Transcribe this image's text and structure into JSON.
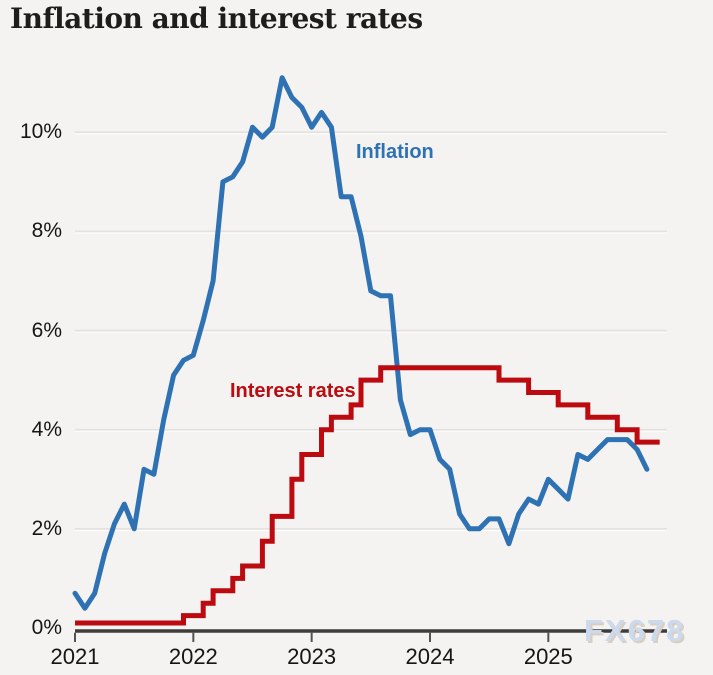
{
  "page": {
    "title": "Inflation and interest rates",
    "watermark": "FX678"
  },
  "colors": {
    "background": "#f4f3f1",
    "inflation_blue": "#2e72b3",
    "rates_red": "#bb0a10",
    "gridline": "#e3e2e0",
    "gridline_emboss": "#fbfbfa",
    "axis": "#3f3d3a",
    "tick_mark": "#55534f",
    "tick_text": "#151514",
    "watermark_blue": "#ccdaee"
  },
  "chart_data": {
    "type": "line",
    "title": "Inflation and interest rates",
    "x_axis": {
      "tick_labels": [
        "2021",
        "2022",
        "2023",
        "2024",
        "2025"
      ],
      "unit": "year",
      "resolution": "monthly"
    },
    "y_axis": {
      "tick_labels": [
        "0%",
        "2%",
        "4%",
        "6%",
        "8%",
        "10%"
      ],
      "ticks": [
        0,
        2,
        4,
        6,
        8,
        10
      ],
      "ylim": [
        0,
        11.3
      ],
      "unit": "%"
    },
    "grid": "horizontal-only",
    "legend_position": "inline-labels-on-chart",
    "series": [
      {
        "name": "Inflation",
        "label": "Inflation",
        "color": "#2e72b3",
        "style": "line",
        "x_start_month": "2021-01",
        "values_pct": [
          0.7,
          0.4,
          0.7,
          1.5,
          2.1,
          2.5,
          2.0,
          3.2,
          3.1,
          4.2,
          5.1,
          5.4,
          5.5,
          6.2,
          7.0,
          9.0,
          9.1,
          9.4,
          10.1,
          9.9,
          10.1,
          11.1,
          10.7,
          10.5,
          10.1,
          10.4,
          10.1,
          8.7,
          8.7,
          7.9,
          6.8,
          6.7,
          6.7,
          4.6,
          3.9,
          4.0,
          4.0,
          3.4,
          3.2,
          2.3,
          2.0,
          2.0,
          2.2,
          2.2,
          1.7,
          2.3,
          2.6,
          2.5,
          3.0,
          2.8,
          2.6,
          3.5,
          3.4,
          3.6,
          3.8,
          3.8,
          3.8,
          3.6,
          3.2
        ]
      },
      {
        "name": "Interest rates",
        "label": "Interest rates",
        "color": "#bb0a10",
        "style": "step",
        "x_start_month": "2021-01",
        "breakpoints_month_value": [
          [
            0,
            0.1
          ],
          [
            11,
            0.25
          ],
          [
            13,
            0.5
          ],
          [
            14,
            0.75
          ],
          [
            16,
            1.0
          ],
          [
            17,
            1.25
          ],
          [
            19,
            1.75
          ],
          [
            20,
            2.25
          ],
          [
            22,
            3.0
          ],
          [
            23,
            3.5
          ],
          [
            25,
            4.0
          ],
          [
            26,
            4.25
          ],
          [
            28,
            4.5
          ],
          [
            29,
            5.0
          ],
          [
            31,
            5.25
          ],
          [
            43,
            5.0
          ],
          [
            46,
            4.75
          ],
          [
            49,
            4.5
          ],
          [
            52,
            4.25
          ],
          [
            55,
            4.0
          ],
          [
            57,
            3.75
          ]
        ],
        "end_month_offset": 59.3
      }
    ]
  }
}
